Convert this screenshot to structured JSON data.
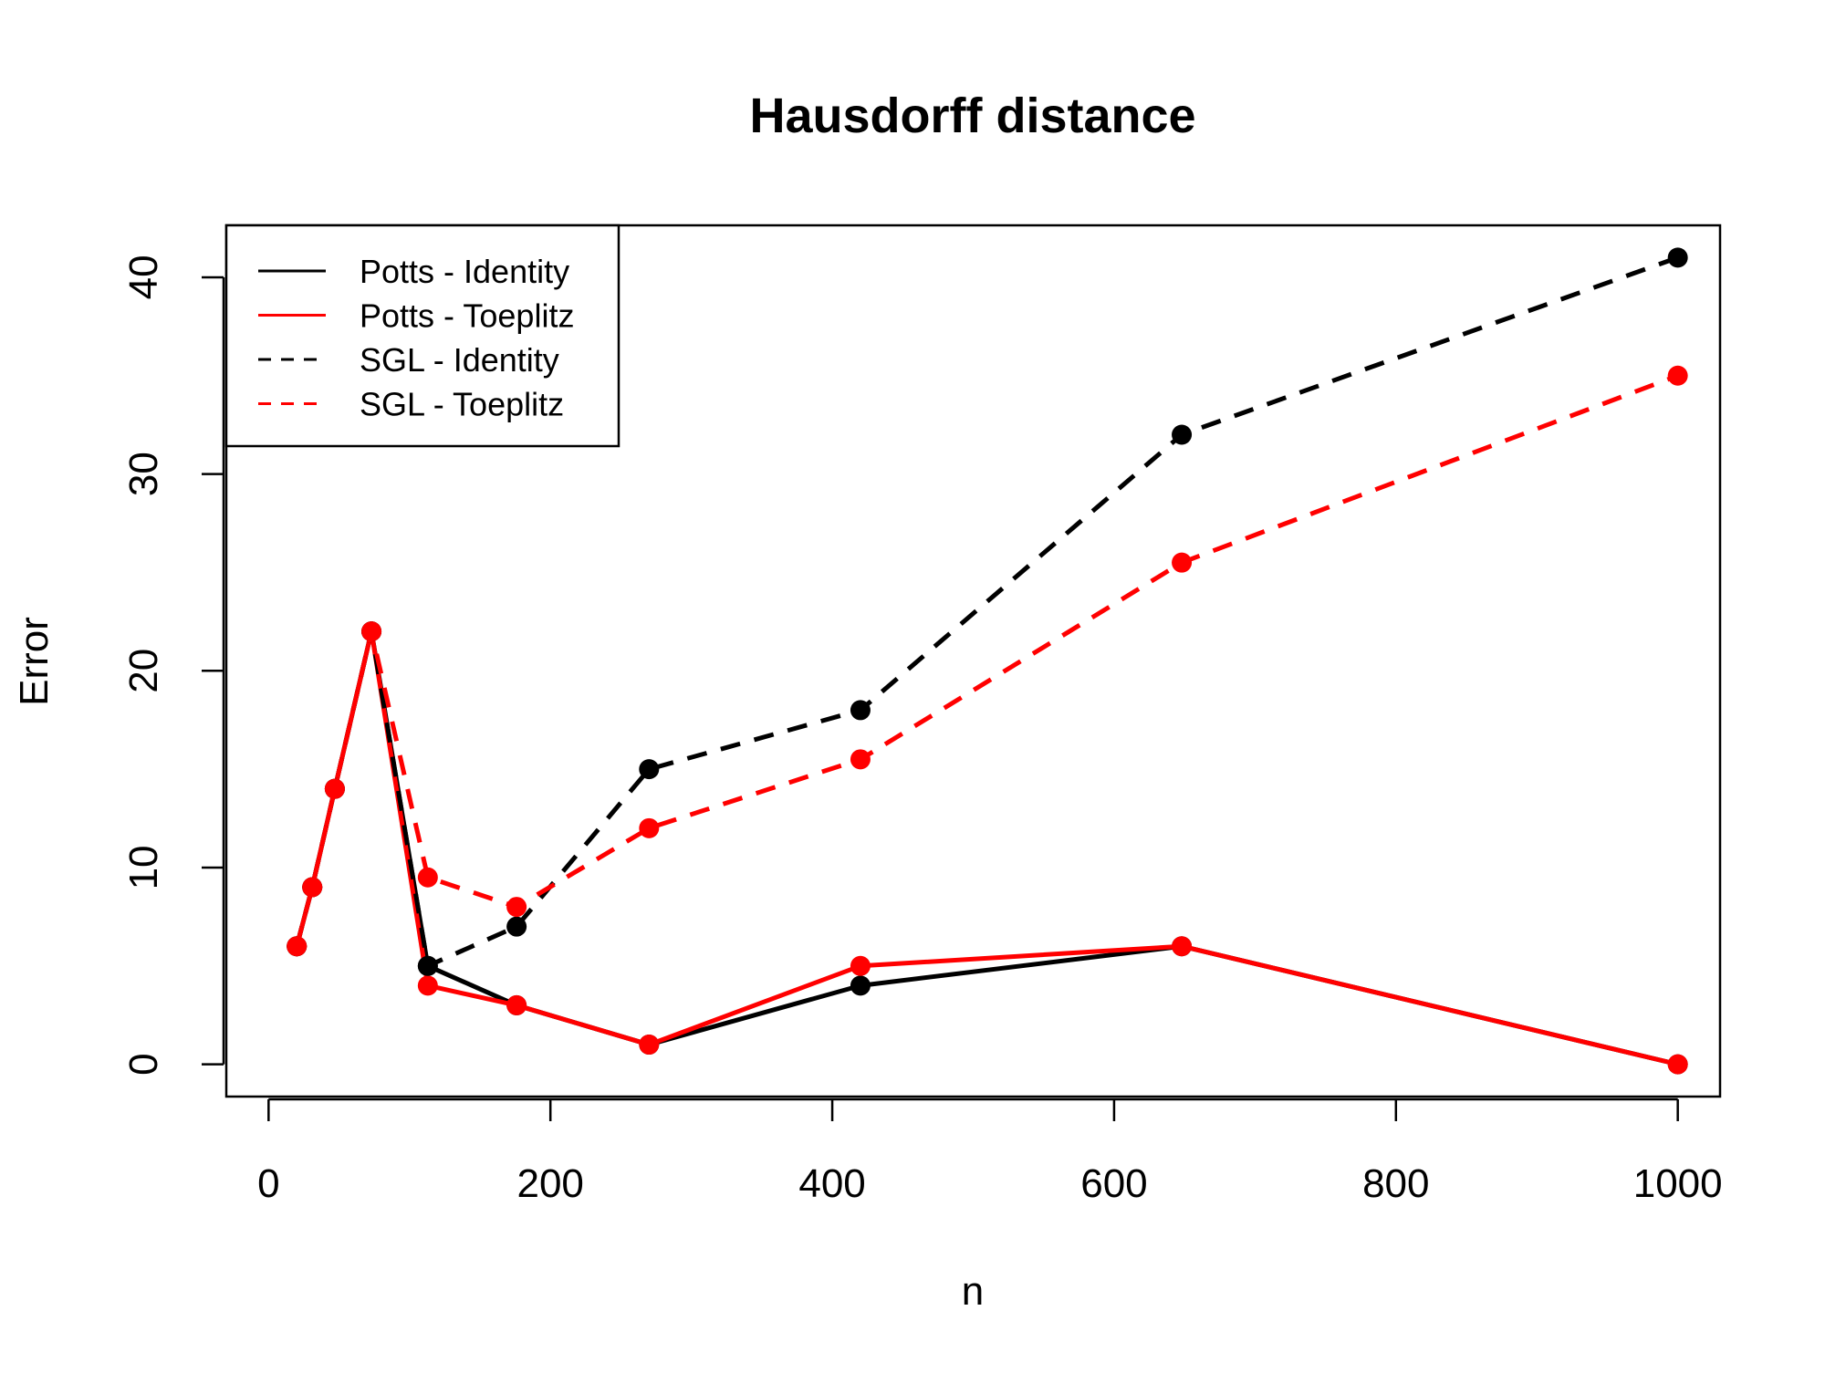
{
  "chart_data": {
    "type": "line",
    "title": "Hausdorff distance",
    "xlabel": "n",
    "ylabel": "Error",
    "xlim": [
      -30,
      1030
    ],
    "ylim": [
      -1.64,
      42.64
    ],
    "x_ticks": [
      0,
      200,
      400,
      600,
      800,
      1000
    ],
    "y_ticks": [
      0,
      10,
      20,
      30,
      40
    ],
    "grid": false,
    "legend_position": "top-left",
    "series": [
      {
        "name": "Potts - Identity",
        "color": "#000000",
        "line_style": "solid",
        "x": [
          20,
          31,
          47,
          73,
          113,
          176,
          270,
          420,
          648,
          1000
        ],
        "y": [
          6,
          9,
          14,
          22,
          5,
          3,
          1,
          4,
          6,
          0
        ]
      },
      {
        "name": "Potts - Toeplitz",
        "color": "#ff0000",
        "line_style": "solid",
        "x": [
          20,
          31,
          47,
          73,
          113,
          176,
          270,
          420,
          648,
          1000
        ],
        "y": [
          6,
          9,
          14,
          22,
          4,
          3,
          1,
          5,
          6,
          0
        ]
      },
      {
        "name": "SGL - Identity",
        "color": "#000000",
        "line_style": "dashed",
        "x": [
          20,
          31,
          47,
          73,
          113,
          176,
          270,
          420,
          648,
          1000
        ],
        "y": [
          6,
          9,
          14,
          22,
          5,
          7,
          15,
          18,
          32,
          41
        ]
      },
      {
        "name": "SGL - Toeplitz",
        "color": "#ff0000",
        "line_style": "dashed",
        "x": [
          20,
          31,
          47,
          73,
          113,
          176,
          270,
          420,
          648,
          1000
        ],
        "y": [
          6,
          9,
          14,
          22,
          9.5,
          8,
          12,
          15.5,
          25.5,
          35
        ]
      }
    ]
  }
}
